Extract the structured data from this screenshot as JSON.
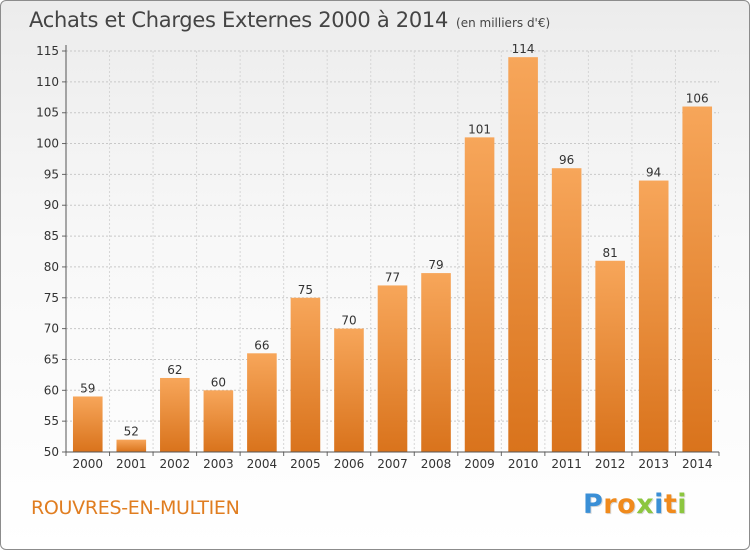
{
  "header": {
    "title": "Achats et Charges Externes 2000 à 2014",
    "subtitle": "(en milliers d'€)"
  },
  "footer": {
    "commune": "ROUVRES-EN-MULTIEN",
    "logo_letters": [
      "P",
      "r",
      "o",
      "x",
      "i",
      "t",
      "i"
    ],
    "logo_colors": [
      "#3a8fd6",
      "#f08a1c",
      "#f08a1c",
      "#8cc63f",
      "#3a8fd6",
      "#f08a1c",
      "#8cc63f"
    ]
  },
  "chart_data": {
    "type": "bar",
    "title": "Achats et Charges Externes 2000 à 2014",
    "subtitle": "(en milliers d'€)",
    "categories": [
      "2000",
      "2001",
      "2002",
      "2003",
      "2004",
      "2005",
      "2006",
      "2007",
      "2008",
      "2009",
      "2010",
      "2011",
      "2012",
      "2013",
      "2014"
    ],
    "values": [
      59,
      52,
      62,
      60,
      66,
      75,
      70,
      77,
      79,
      101,
      114,
      96,
      81,
      94,
      106
    ],
    "ylim": [
      50,
      115
    ],
    "yticks": [
      50,
      55,
      60,
      65,
      70,
      75,
      80,
      85,
      90,
      95,
      100,
      105,
      110,
      115
    ],
    "grid": true,
    "bar_color_top": "#f7a65a",
    "bar_color_bottom": "#d9731c"
  }
}
